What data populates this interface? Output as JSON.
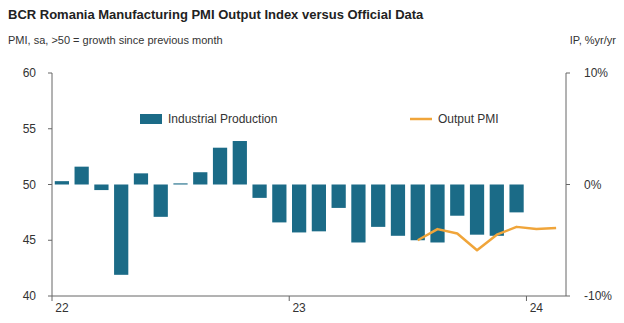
{
  "chart_data": {
    "type": "bar",
    "title": "BCR Romania Manufacturing PMI Output Index versus Official Data",
    "y_label": "PMI, sa, >50 = growth since previous month",
    "y2_label": "IP, %yr/yr",
    "categories": [
      "22",
      null,
      null,
      null,
      null,
      null,
      null,
      null,
      null,
      null,
      null,
      null,
      "23",
      null,
      null,
      null,
      null,
      null,
      null,
      null,
      null,
      null,
      null,
      null,
      "24",
      null
    ],
    "series": [
      {
        "name": "Industrial Production",
        "type": "bar",
        "axis": "y2",
        "color": "#1b6b87",
        "values": [
          0.3,
          1.6,
          -0.5,
          -8.1,
          1.0,
          -2.9,
          0.1,
          1.1,
          3.3,
          3.9,
          -1.2,
          -3.4,
          -4.3,
          -4.2,
          -2.1,
          -5.2,
          -3.8,
          -4.6,
          -5.0,
          -5.2,
          -2.8,
          -4.5,
          -4.6,
          -2.5,
          null,
          null
        ]
      },
      {
        "name": "Output PMI",
        "type": "line",
        "color": "#f0a53a",
        "values": [
          null,
          null,
          null,
          null,
          null,
          null,
          null,
          null,
          null,
          null,
          null,
          null,
          null,
          null,
          null,
          null,
          null,
          null,
          45.0,
          46.0,
          45.6,
          44.1,
          45.5,
          46.2,
          46.0,
          46.1
        ]
      }
    ],
    "ylim": [
      40,
      60
    ],
    "yticks": [
      40,
      45,
      50,
      55,
      60
    ],
    "y2lim": [
      -10,
      10
    ],
    "y2ticks": [
      {
        "value": -10,
        "label": "-10%"
      },
      {
        "value": 0,
        "label": "0%"
      },
      {
        "value": 10,
        "label": "10%"
      }
    ],
    "grid": false,
    "legend": "top"
  }
}
